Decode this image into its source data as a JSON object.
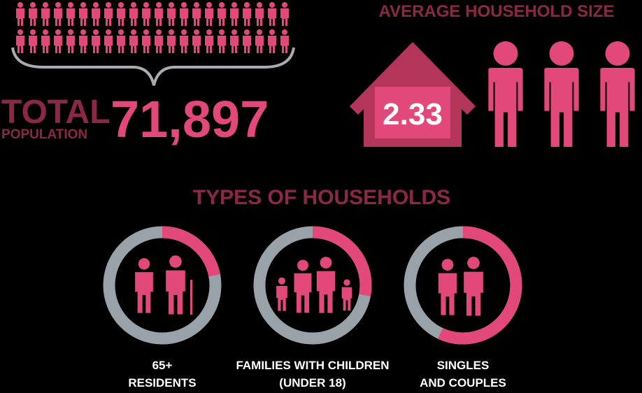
{
  "population": {
    "label_1": "TOTAL",
    "label_2": "POPULATION",
    "value": "71,897"
  },
  "household_size": {
    "title": "AVERAGE HOUSEHOLD SIZE",
    "value": "2.33"
  },
  "household_types": {
    "title": "TYPES OF HOUSEHOLDS",
    "items": [
      {
        "label_1": "65+",
        "label_2": "RESIDENTS",
        "share": 22
      },
      {
        "label_1": "FAMILIES WITH CHILDREN",
        "label_2": "(UNDER 18)",
        "share": 28
      },
      {
        "label_1": "SINGLES",
        "label_2": "AND COUPLES",
        "share": 57
      }
    ]
  }
}
